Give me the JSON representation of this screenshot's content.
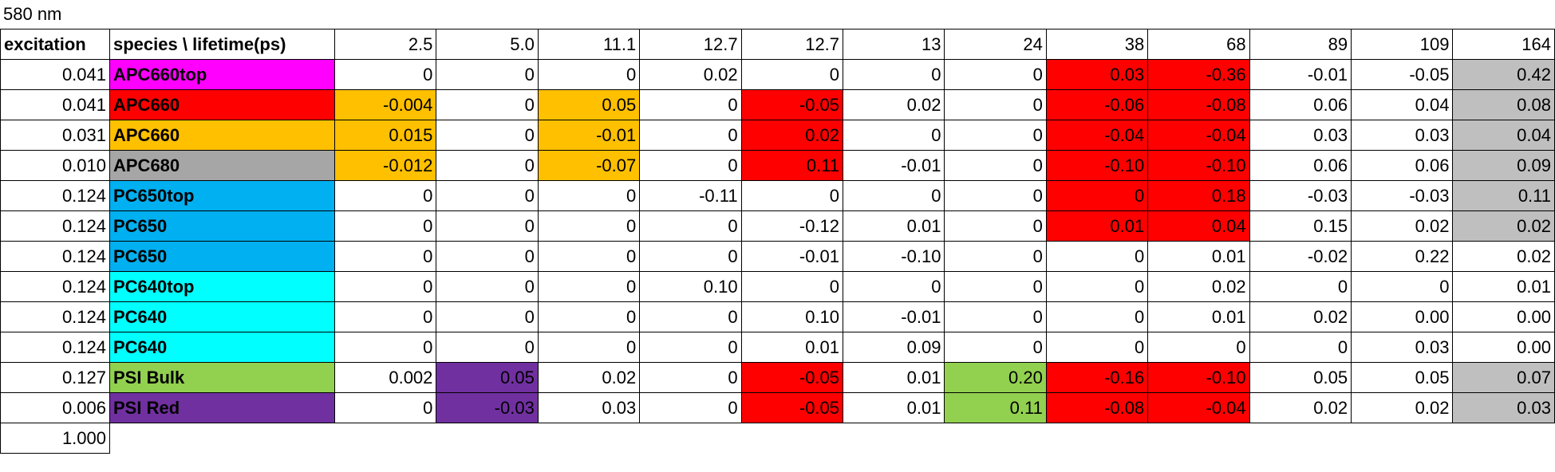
{
  "caption": "580 nm",
  "table": {
    "header": {
      "excitation": "excitation",
      "species": "species \\ lifetime(ps)",
      "lifetimes": [
        "2.5",
        "5.0",
        "11.1",
        "12.7",
        "12.7",
        "13",
        "24",
        "38",
        "68",
        "89",
        "109",
        "164"
      ]
    },
    "rows": [
      {
        "excitation": "0.041",
        "species": "APC660top",
        "species_color": "#ff00ff",
        "cells": [
          "0",
          "0",
          "0",
          "0.02",
          "0",
          "0",
          "0",
          "0.03",
          "-0.36",
          "-0.01",
          "-0.05",
          "0.42"
        ],
        "cell_colors": [
          null,
          null,
          null,
          null,
          null,
          null,
          null,
          "#ff0000",
          "#ff0000",
          null,
          null,
          "#bfbfbf"
        ]
      },
      {
        "excitation": "0.041",
        "species": "APC660",
        "species_color": "#ff0000",
        "cells": [
          "-0.004",
          "0",
          "0.05",
          "0",
          "-0.05",
          "0.02",
          "0",
          "-0.06",
          "-0.08",
          "0.06",
          "0.04",
          "0.08"
        ],
        "cell_colors": [
          "#ffc000",
          null,
          "#ffc000",
          null,
          "#ff0000",
          null,
          null,
          "#ff0000",
          "#ff0000",
          null,
          null,
          "#bfbfbf"
        ]
      },
      {
        "excitation": "0.031",
        "species": "APC660",
        "species_color": "#ffc000",
        "cells": [
          "0.015",
          "0",
          "-0.01",
          "0",
          "0.02",
          "0",
          "0",
          "-0.04",
          "-0.04",
          "0.03",
          "0.03",
          "0.04"
        ],
        "cell_colors": [
          "#ffc000",
          null,
          "#ffc000",
          null,
          "#ff0000",
          null,
          null,
          "#ff0000",
          "#ff0000",
          null,
          null,
          "#bfbfbf"
        ]
      },
      {
        "excitation": "0.010",
        "species": "APC680",
        "species_color": "#a6a6a6",
        "cells": [
          "-0.012",
          "0",
          "-0.07",
          "0",
          "0.11",
          "-0.01",
          "0",
          "-0.10",
          "-0.10",
          "0.06",
          "0.06",
          "0.09"
        ],
        "cell_colors": [
          "#ffc000",
          null,
          "#ffc000",
          null,
          "#ff0000",
          null,
          null,
          "#ff0000",
          "#ff0000",
          null,
          null,
          "#bfbfbf"
        ]
      },
      {
        "excitation": "0.124",
        "species": "PC650top",
        "species_color": "#00b0f0",
        "cells": [
          "0",
          "0",
          "0",
          "-0.11",
          "0",
          "0",
          "0",
          "0",
          "0.18",
          "-0.03",
          "-0.03",
          "0.11"
        ],
        "cell_colors": [
          null,
          null,
          null,
          null,
          null,
          null,
          null,
          "#ff0000",
          "#ff0000",
          null,
          null,
          "#bfbfbf"
        ]
      },
      {
        "excitation": "0.124",
        "species": "PC650",
        "species_color": "#00b0f0",
        "cells": [
          "0",
          "0",
          "0",
          "0",
          "-0.12",
          "0.01",
          "0",
          "0.01",
          "0.04",
          "0.15",
          "0.02",
          "0.02"
        ],
        "cell_colors": [
          null,
          null,
          null,
          null,
          null,
          null,
          null,
          "#ff0000",
          "#ff0000",
          null,
          null,
          "#bfbfbf"
        ]
      },
      {
        "excitation": "0.124",
        "species": "PC650",
        "species_color": "#00b0f0",
        "cells": [
          "0",
          "0",
          "0",
          "0",
          "-0.01",
          "-0.10",
          "0",
          "0",
          "0.01",
          "-0.02",
          "0.22",
          "0.02"
        ],
        "cell_colors": [
          null,
          null,
          null,
          null,
          null,
          null,
          null,
          null,
          null,
          null,
          null,
          null
        ]
      },
      {
        "excitation": "0.124",
        "species": "PC640top",
        "species_color": "#00ffff",
        "cells": [
          "0",
          "0",
          "0",
          "0.10",
          "0",
          "0",
          "0",
          "0",
          "0.02",
          "0",
          "0",
          "0.01"
        ],
        "cell_colors": [
          null,
          null,
          null,
          null,
          null,
          null,
          null,
          null,
          null,
          null,
          null,
          null
        ]
      },
      {
        "excitation": "0.124",
        "species": "PC640",
        "species_color": "#00ffff",
        "cells": [
          "0",
          "0",
          "0",
          "0",
          "0.10",
          "-0.01",
          "0",
          "0",
          "0.01",
          "0.02",
          "0.00",
          "0.00"
        ],
        "cell_colors": [
          null,
          null,
          null,
          null,
          null,
          null,
          null,
          null,
          null,
          null,
          null,
          null
        ]
      },
      {
        "excitation": "0.124",
        "species": "PC640",
        "species_color": "#00ffff",
        "cells": [
          "0",
          "0",
          "0",
          "0",
          "0.01",
          "0.09",
          "0",
          "0",
          "0",
          "0",
          "0.03",
          "0.00"
        ],
        "cell_colors": [
          null,
          null,
          null,
          null,
          null,
          null,
          null,
          null,
          null,
          null,
          null,
          null
        ]
      },
      {
        "excitation": "0.127",
        "species": "PSI Bulk",
        "species_color": "#92d050",
        "cells": [
          "0.002",
          "0.05",
          "0.02",
          "0",
          "-0.05",
          "0.01",
          "0.20",
          "-0.16",
          "-0.10",
          "0.05",
          "0.05",
          "0.07"
        ],
        "cell_colors": [
          null,
          "#7030a0",
          null,
          null,
          "#ff0000",
          null,
          "#92d050",
          "#ff0000",
          "#ff0000",
          null,
          null,
          "#bfbfbf"
        ]
      },
      {
        "excitation": "0.006",
        "species": "PSI Red",
        "species_color": "#7030a0",
        "cells": [
          "0",
          "-0.03",
          "0.03",
          "0",
          "-0.05",
          "0.01",
          "0.11",
          "-0.08",
          "-0.04",
          "0.02",
          "0.02",
          "0.03"
        ],
        "cell_colors": [
          null,
          "#7030a0",
          null,
          null,
          "#ff0000",
          null,
          "#92d050",
          "#ff0000",
          "#ff0000",
          null,
          null,
          "#bfbfbf"
        ]
      }
    ],
    "total": "1.000"
  }
}
